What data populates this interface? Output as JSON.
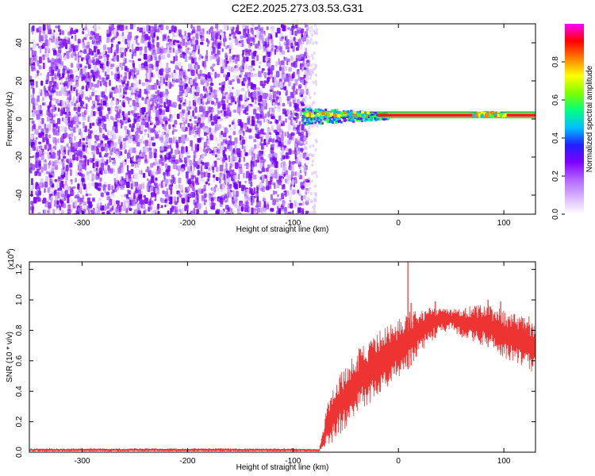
{
  "title": "C2E2.2025.273.03.53.G31",
  "chart_data": [
    {
      "type": "heatmap",
      "name": "spectrogram",
      "xlabel": "Height of straight line (km)",
      "ylabel": "Frequency (Hz)",
      "xlim": [
        -350,
        130
      ],
      "ylim": [
        -50,
        50
      ],
      "xticks": [
        -300,
        -200,
        -100,
        0,
        100
      ],
      "yticks": [
        -40,
        -20,
        0,
        20,
        40
      ],
      "noise_region": [
        -350,
        -90
      ],
      "tone": {
        "frequency_hz": 2,
        "start_km": -92,
        "strong_from_km": -20,
        "bright_segments_km": [
          [
            -90,
            -30
          ],
          [
            70,
            100
          ]
        ]
      },
      "colorbar": {
        "label": "Normalized spectral amplitude",
        "range": [
          0,
          1
        ],
        "ticks": [
          "0.0",
          "0.2",
          "0.4",
          "0.6",
          "0.8"
        ],
        "tick_values": [
          0.0,
          0.2,
          0.4,
          0.6,
          0.8
        ],
        "colors": [
          "#ffffff",
          "#d9b3ff",
          "#b366ff",
          "#8000ff",
          "#2020ff",
          "#00c0ff",
          "#00ff80",
          "#80ff00",
          "#ffff00",
          "#ff8000",
          "#ff0000",
          "#ff00ff"
        ]
      }
    },
    {
      "type": "line",
      "name": "snr",
      "xlabel": "Height of straight line (km)",
      "ylabel": "SNR (10 * v/v)",
      "scale_label": "(x10",
      "scale_exp": "4",
      "scale_close": ")",
      "xlim": [
        -350,
        130
      ],
      "ylim": [
        0,
        1.25
      ],
      "xticks": [
        -300,
        -200,
        -100,
        0,
        100
      ],
      "yticks": [
        "0.0",
        "0.2",
        "0.4",
        "0.6",
        "0.8",
        "1.0",
        "1.2"
      ],
      "ytick_values": [
        0.0,
        0.2,
        0.4,
        0.6,
        0.8,
        1.0,
        1.2
      ],
      "color": "#ee3333",
      "envelope": {
        "x": [
          -350,
          -100,
          -75,
          -70,
          -65,
          -60,
          -55,
          -50,
          -45,
          -40,
          -35,
          -30,
          -25,
          -20,
          -15,
          -10,
          -5,
          0,
          5,
          10,
          15,
          20,
          30,
          40,
          50,
          60,
          70,
          80,
          90,
          100,
          110,
          120,
          130
        ],
        "low": [
          0.005,
          0.005,
          0.005,
          0.01,
          0.05,
          0.08,
          0.12,
          0.15,
          0.2,
          0.25,
          0.28,
          0.3,
          0.32,
          0.35,
          0.38,
          0.42,
          0.45,
          0.48,
          0.52,
          0.55,
          0.6,
          0.64,
          0.72,
          0.78,
          0.8,
          0.75,
          0.72,
          0.7,
          0.68,
          0.62,
          0.58,
          0.55,
          0.5
        ],
        "high": [
          0.025,
          0.025,
          0.02,
          0.22,
          0.4,
          0.46,
          0.52,
          0.56,
          0.62,
          0.66,
          0.7,
          0.74,
          0.77,
          0.8,
          0.82,
          0.85,
          0.87,
          0.88,
          0.9,
          0.92,
          0.93,
          0.94,
          0.95,
          0.96,
          0.95,
          0.95,
          0.97,
          0.98,
          0.95,
          0.94,
          0.92,
          0.9,
          0.88
        ]
      },
      "spikes": [
        {
          "x": 9,
          "y": 1.25
        },
        {
          "x": 12,
          "y": 0.98
        },
        {
          "x": 85,
          "y": 1.0
        },
        {
          "x": 97,
          "y": 0.99
        },
        {
          "x": 35,
          "y": 0.99
        }
      ]
    }
  ]
}
